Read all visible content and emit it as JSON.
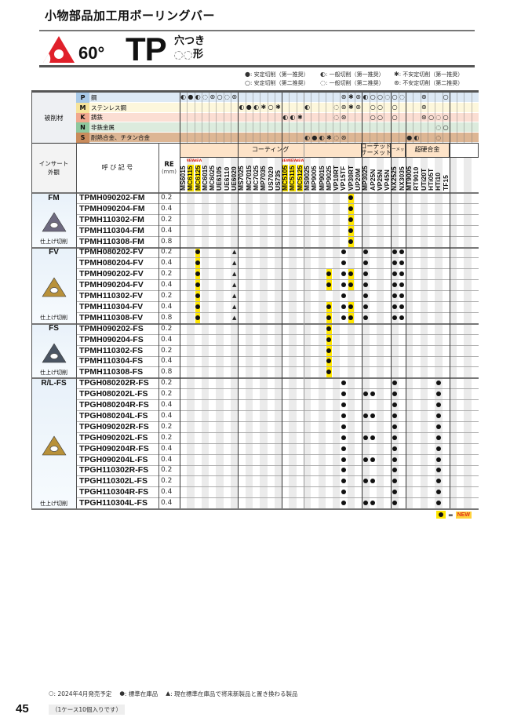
{
  "header": {
    "title": "小物部品加工用ボーリングバー",
    "angle": "60°",
    "shape_code": "TP",
    "hole": "穴つき",
    "shape_suffix": "形"
  },
  "legend": [
    {
      "symbol": "●",
      "text": ": 安定切削（第一推奨）"
    },
    {
      "symbol": "◐",
      "text": ": 一般切削（第一推奨）"
    },
    {
      "symbol": "✱",
      "text": ": 不安定切削（第一推奨）"
    },
    {
      "symbol": "○",
      "text": ": 安定切削（第二推奨）"
    },
    {
      "symbol": "◌",
      "text": ": 一般切削（第二推奨）"
    },
    {
      "symbol": "⊛",
      "text": ": 不安定切削（第二推奨）"
    }
  ],
  "table": {
    "material_label": "被削材",
    "insert_label": "インサート\n外観",
    "code_label": "呼 び 記 号",
    "re_label": "RE",
    "re_unit": "(mm)",
    "new_tag": "NEW",
    "grade_groups": [
      {
        "label": "コーティング",
        "span": 25
      },
      {
        "label": "コーテッド\nサーメット",
        "span": 4
      },
      {
        "label": "サーメット",
        "span": 2
      },
      {
        "label": "超硬合金",
        "span": 6
      },
      {
        "label": "",
        "span": 4
      }
    ],
    "columns": [
      {
        "name": "MS6015"
      },
      {
        "name": "MC6115",
        "new": true
      },
      {
        "name": "MC6125",
        "new": true
      },
      {
        "name": "MC6015"
      },
      {
        "name": "MC6025"
      },
      {
        "name": "UE6105"
      },
      {
        "name": "UE6110"
      },
      {
        "name": "UE6020"
      },
      {
        "name": "MS7025"
      },
      {
        "name": "MC7015"
      },
      {
        "name": "MC7025"
      },
      {
        "name": "MP7035"
      },
      {
        "name": "US7020"
      },
      {
        "name": "US735"
      },
      {
        "name": "MC5105",
        "new": true
      },
      {
        "name": "MC5115",
        "new": true
      },
      {
        "name": "MC5125",
        "new": true
      },
      {
        "name": "MS9025"
      },
      {
        "name": "MP9005"
      },
      {
        "name": "MP9015"
      },
      {
        "name": "MP9025"
      },
      {
        "name": "VP10RT"
      },
      {
        "name": "VP15TF"
      },
      {
        "name": "VP30RT"
      },
      {
        "name": "UP20M"
      },
      {
        "name": "MP3025"
      },
      {
        "name": "AP25N"
      },
      {
        "name": "VP25N"
      },
      {
        "name": "VP45N"
      },
      {
        "name": "NX2525"
      },
      {
        "name": "NX3035"
      },
      {
        "name": "MT9005"
      },
      {
        "name": "RT9010"
      },
      {
        "name": "UTi20T"
      },
      {
        "name": "HTi05T"
      },
      {
        "name": "HTi10"
      },
      {
        "name": "TF15"
      },
      {
        "name": ""
      },
      {
        "name": ""
      },
      {
        "name": ""
      },
      {
        "name": ""
      }
    ],
    "materials": [
      {
        "code": "P",
        "name": "鋼",
        "bg": "#dde9f5",
        "code_bg": "#a8c9e8",
        "symbols": {
          "MS6015": "◐",
          "MC6115": "●",
          "MC6125": "◐",
          "MC6015": "◌",
          "MC6025": "⊛",
          "UE6105": "○",
          "UE6110": "◌",
          "UE6020": "⊛",
          "VP15TF": "⊛",
          "VP30RT": "✱",
          "UP20M": "⊛",
          "MP3025": "◐",
          "AP25N": "○",
          "VP25N": "○",
          "VP45N": "◌",
          "NX2525": "○",
          "NX3035": "◌",
          "UTi20T": "⊛",
          "TF15": "○"
        }
      },
      {
        "code": "M",
        "name": "ステンレス鋼",
        "bg": "#fdf7dc",
        "code_bg": "#f6e39a",
        "symbols": {
          "MS7025": "◐",
          "MC7015": "●",
          "MC7025": "◐",
          "MP7035": "✱",
          "US7020": "○",
          "US735": "✱",
          "MS9025": "◐",
          "VP10RT": "◌",
          "VP15TF": "⊛",
          "VP30RT": "✱",
          "UP20M": "⊛",
          "AP25N": "○",
          "VP25N": "○",
          "NX2525": "○",
          "UTi20T": "⊛"
        }
      },
      {
        "code": "K",
        "name": "鋳鉄",
        "bg": "#fbded3",
        "code_bg": "#f1a88e",
        "symbols": {
          "MC5105": "◐",
          "MC5115": "◐",
          "MC5125": "✱",
          "VP10RT": "◌",
          "VP15TF": "⊛",
          "AP25N": "○",
          "VP25N": "○",
          "NX2525": "○",
          "UTi20T": "⊛",
          "HTi05T": "○",
          "HTi10": "◌",
          "TF15": "○"
        }
      },
      {
        "code": "N",
        "name": "非鉄金属",
        "bg": "#dcebdd",
        "code_bg": "#8fc79e",
        "symbols": {
          "HTi10": "◌",
          "TF15": "○"
        }
      },
      {
        "code": "S",
        "name": "耐熱合金、チタン合金",
        "bg": "#ddb694",
        "code_bg": "#c98b5b",
        "symbols": {
          "MS9025": "◐",
          "MP9005": "●",
          "MP9015": "◐",
          "MP9025": "✱",
          "VP10RT": "◌",
          "VP15TF": "⊛",
          "MT9005": "●",
          "RT9010": "◐",
          "HTi10": "◌"
        }
      }
    ],
    "groups": [
      {
        "name": "FM",
        "usage": "仕上げ切削",
        "insert_color": "#6e6a80",
        "rows": [
          {
            "code": "TPMH090202-FM",
            "re": "0.2",
            "marks": {
              "VP30RT": "n"
            }
          },
          {
            "code": "TPMH090204-FM",
            "re": "0.4",
            "marks": {
              "VP30RT": "n"
            }
          },
          {
            "code": "TPMH110302-FM",
            "re": "0.2",
            "marks": {
              "VP30RT": "n"
            }
          },
          {
            "code": "TPMH110304-FM",
            "re": "0.4",
            "marks": {
              "VP30RT": "n"
            }
          },
          {
            "code": "TPMH110308-FM",
            "re": "0.8",
            "marks": {
              "VP30RT": "n"
            }
          }
        ]
      },
      {
        "name": "FV",
        "usage": "仕上げ切削",
        "insert_color": "#b8913a",
        "rows": [
          {
            "code": "TPMH080202-FV",
            "re": "0.2",
            "marks": {
              "MC6125": "n",
              "UE6020": "t",
              "VP15TF": "d",
              "MP3025": "d",
              "NX2525": "d",
              "NX3035": "d"
            }
          },
          {
            "code": "TPMH080204-FV",
            "re": "0.4",
            "marks": {
              "MC6125": "n",
              "UE6020": "t",
              "VP15TF": "d",
              "MP3025": "d",
              "NX2525": "d",
              "NX3035": "d"
            }
          },
          {
            "code": "TPMH090202-FV",
            "re": "0.2",
            "marks": {
              "MC6125": "n",
              "UE6020": "t",
              "MP9025": "n",
              "VP15TF": "d",
              "VP30RT": "n",
              "MP3025": "d",
              "NX2525": "d",
              "NX3035": "d"
            }
          },
          {
            "code": "TPMH090204-FV",
            "re": "0.4",
            "marks": {
              "MC6125": "n",
              "UE6020": "t",
              "MP9025": "n",
              "VP15TF": "d",
              "VP30RT": "n",
              "MP3025": "d",
              "NX2525": "d",
              "NX3035": "d"
            }
          },
          {
            "code": "TPMH110302-FV",
            "re": "0.2",
            "marks": {
              "MC6125": "n",
              "UE6020": "t",
              "VP15TF": "d",
              "MP3025": "d",
              "NX2525": "d",
              "NX3035": "d"
            }
          },
          {
            "code": "TPMH110304-FV",
            "re": "0.4",
            "marks": {
              "MC6125": "n",
              "UE6020": "t",
              "MP9025": "n",
              "VP15TF": "d",
              "VP30RT": "n",
              "MP3025": "d",
              "NX2525": "d",
              "NX3035": "d"
            }
          },
          {
            "code": "TPMH110308-FV",
            "re": "0.8",
            "marks": {
              "MC6125": "n",
              "UE6020": "t",
              "MP9025": "n",
              "VP15TF": "d",
              "VP30RT": "n",
              "MP3025": "d",
              "NX2525": "d",
              "NX3035": "d"
            }
          }
        ]
      },
      {
        "name": "FS",
        "usage": "仕上げ切削",
        "insert_color": "#4b5563",
        "rows": [
          {
            "code": "TPMH090202-FS",
            "re": "0.2",
            "marks": {
              "MP9025": "n"
            }
          },
          {
            "code": "TPMH090204-FS",
            "re": "0.4",
            "marks": {
              "MP9025": "n"
            }
          },
          {
            "code": "TPMH110302-FS",
            "re": "0.2",
            "marks": {
              "MP9025": "n"
            }
          },
          {
            "code": "TPMH110304-FS",
            "re": "0.4",
            "marks": {
              "MP9025": "n"
            }
          },
          {
            "code": "TPMH110308-FS",
            "re": "0.8",
            "marks": {
              "MP9025": "n"
            }
          }
        ]
      },
      {
        "name": "R/L-FS",
        "usage": "仕上げ切削",
        "insert_color": "#b8913a",
        "rows": [
          {
            "code": "TPGH080202R-FS",
            "re": "0.2",
            "marks": {
              "VP15TF": "d",
              "NX2525": "d",
              "HTi10": "d"
            }
          },
          {
            "code": "TPGH080202L-FS",
            "re": "0.2",
            "marks": {
              "VP15TF": "d",
              "MP3025": "d",
              "AP25N": "d",
              "NX2525": "d",
              "HTi10": "d"
            }
          },
          {
            "code": "TPGH080204R-FS",
            "re": "0.4",
            "marks": {
              "VP15TF": "d",
              "NX2525": "d",
              "HTi10": "d"
            }
          },
          {
            "code": "TPGH080204L-FS",
            "re": "0.4",
            "marks": {
              "VP15TF": "d",
              "MP3025": "d",
              "AP25N": "d",
              "NX2525": "d",
              "HTi10": "d"
            }
          },
          {
            "code": "TPGH090202R-FS",
            "re": "0.2",
            "marks": {
              "VP15TF": "d",
              "NX2525": "d",
              "HTi10": "d"
            }
          },
          {
            "code": "TPGH090202L-FS",
            "re": "0.2",
            "marks": {
              "VP15TF": "d",
              "MP3025": "d",
              "AP25N": "d",
              "NX2525": "d",
              "HTi10": "d"
            }
          },
          {
            "code": "TPGH090204R-FS",
            "re": "0.4",
            "marks": {
              "VP15TF": "d",
              "NX2525": "d",
              "HTi10": "d"
            }
          },
          {
            "code": "TPGH090204L-FS",
            "re": "0.4",
            "marks": {
              "VP15TF": "d",
              "MP3025": "d",
              "AP25N": "d",
              "NX2525": "d",
              "HTi10": "d"
            }
          },
          {
            "code": "TPGH110302R-FS",
            "re": "0.2",
            "marks": {
              "VP15TF": "d",
              "NX2525": "d",
              "HTi10": "d"
            }
          },
          {
            "code": "TPGH110302L-FS",
            "re": "0.2",
            "marks": {
              "VP15TF": "d",
              "MP3025": "d",
              "AP25N": "d",
              "NX2525": "d",
              "HTi10": "d"
            }
          },
          {
            "code": "TPGH110304R-FS",
            "re": "0.4",
            "marks": {
              "VP15TF": "d",
              "NX2525": "d",
              "HTi10": "d"
            }
          },
          {
            "code": "TPGH110304L-FS",
            "re": "0.4",
            "marks": {
              "VP15TF": "d",
              "MP3025": "d",
              "AP25N": "d",
              "NX2525": "d",
              "HTi10": "d"
            }
          }
        ]
      }
    ]
  },
  "new_legend": {
    "equals": "=",
    "tag": "NEW"
  },
  "colors": {
    "new_highlight": "#ffe600",
    "new_tag_bg": "#ffd23c",
    "new_tag_text": "#e0301e",
    "brand_red": "#e0202a"
  },
  "footer": {
    "notes": [
      {
        "symbol": "○",
        "text": ": 2024年4月発売予定"
      },
      {
        "symbol": "●",
        "text": ": 標準在庫品"
      },
      {
        "symbol": "▲",
        "text": ": 現在標準在庫品で将来新製品と置き換わる製品"
      }
    ],
    "page_number": "45",
    "case_note": "（1ケース10個入りです）"
  }
}
